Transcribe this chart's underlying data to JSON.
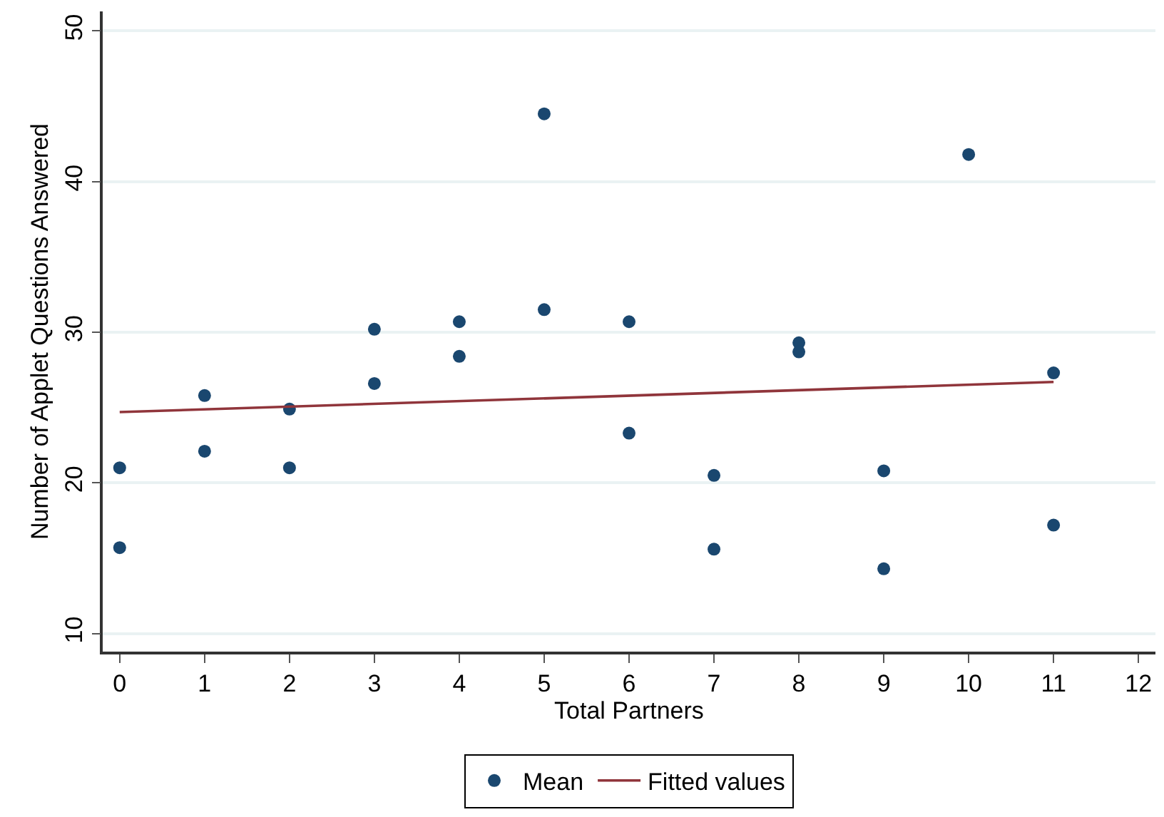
{
  "chart_data": {
    "type": "scatter",
    "xlabel": "Total Partners",
    "ylabel": "Number of Applet Questions Answered",
    "series": [
      {
        "name": "Mean",
        "color": "#1a476f",
        "marker": "circle",
        "x": [
          0,
          0,
          1,
          1,
          2,
          2,
          3,
          3,
          4,
          4,
          5,
          5,
          6,
          6,
          7,
          7,
          8,
          8,
          9,
          9,
          10,
          11,
          11
        ],
        "values": [
          21.0,
          15.7,
          25.8,
          22.1,
          24.9,
          21.0,
          30.2,
          26.6,
          30.7,
          28.4,
          44.5,
          31.5,
          30.7,
          23.3,
          20.5,
          15.6,
          29.3,
          28.7,
          20.8,
          14.3,
          41.8,
          27.3,
          17.2
        ]
      },
      {
        "name": "Fitted values",
        "type": "line",
        "color": "#90353b",
        "marker": "none",
        "line_style": "solid",
        "x": [
          0,
          11
        ],
        "values": [
          24.7,
          26.7
        ]
      }
    ],
    "xlim": [
      -0.2,
      12.2
    ],
    "xticks": [
      0,
      1,
      2,
      3,
      4,
      5,
      6,
      7,
      8,
      9,
      10,
      11,
      12
    ],
    "ylim": [
      8.8,
      51.3
    ],
    "yticks": [
      10,
      20,
      30,
      40,
      50
    ],
    "grid": "y",
    "legend": "bottom"
  }
}
